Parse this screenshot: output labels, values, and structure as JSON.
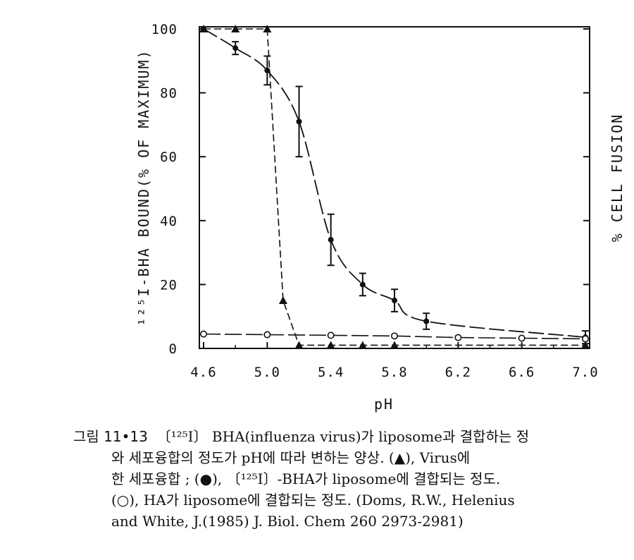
{
  "chart_data": {
    "type": "line",
    "xlabel": "pH",
    "ylabel_left": "¹²⁵I-BHA BOUND(% OF MAXIMUM)",
    "ylabel_right": "% CELL FUSION",
    "xlim": [
      4.6,
      7.0
    ],
    "ylim": [
      0,
      100
    ],
    "x_ticks": [
      "4.6",
      "5.0",
      "5.4",
      "5.8",
      "6.2",
      "6.6",
      "7.0"
    ],
    "y_ticks": [
      "0",
      "20",
      "40",
      "60",
      "80",
      "100"
    ],
    "series": [
      {
        "marker": "triangle",
        "x": [
          4.6,
          4.8,
          5.0,
          5.1,
          5.2,
          5.4,
          5.6,
          5.8,
          7.0
        ],
        "y": [
          100,
          100,
          100,
          15,
          1,
          1,
          1,
          1,
          1
        ]
      },
      {
        "marker": "filled-circle",
        "x": [
          4.6,
          4.8,
          5.0,
          5.2,
          5.4,
          5.6,
          5.8,
          6.0,
          7.0
        ],
        "y": [
          100,
          94,
          87,
          71,
          34,
          20,
          15,
          8.5,
          3.5
        ],
        "err": [
          0,
          2,
          4.5,
          11,
          8,
          3.5,
          3.5,
          2.5,
          2
        ]
      },
      {
        "marker": "open-circle",
        "x": [
          4.6,
          5.0,
          5.4,
          5.8,
          6.2,
          6.6,
          7.0
        ],
        "y": [
          4.5,
          4.3,
          4.1,
          3.9,
          3.4,
          3.2,
          3.0
        ]
      }
    ]
  },
  "caption": {
    "label": "그림 11•13",
    "line1": "〔¹²⁵I〕 BHA(influenza virus)가 liposome과 결합하는 정",
    "line2": "와 세포융합의 정도가 pH에 따라 변하는 양상. (▲), Virus에",
    "line3": "한 세포융합 ; (●), 〔¹²⁵I〕-BHA가 liposome에 결합되는 정도.",
    "line4": "(○), HA가 liposome에 결합되는 정도. (Doms, R.W., Helenius",
    "line5": "and White, J.(1985) J. Biol. Chem 260 2973-2981)"
  }
}
